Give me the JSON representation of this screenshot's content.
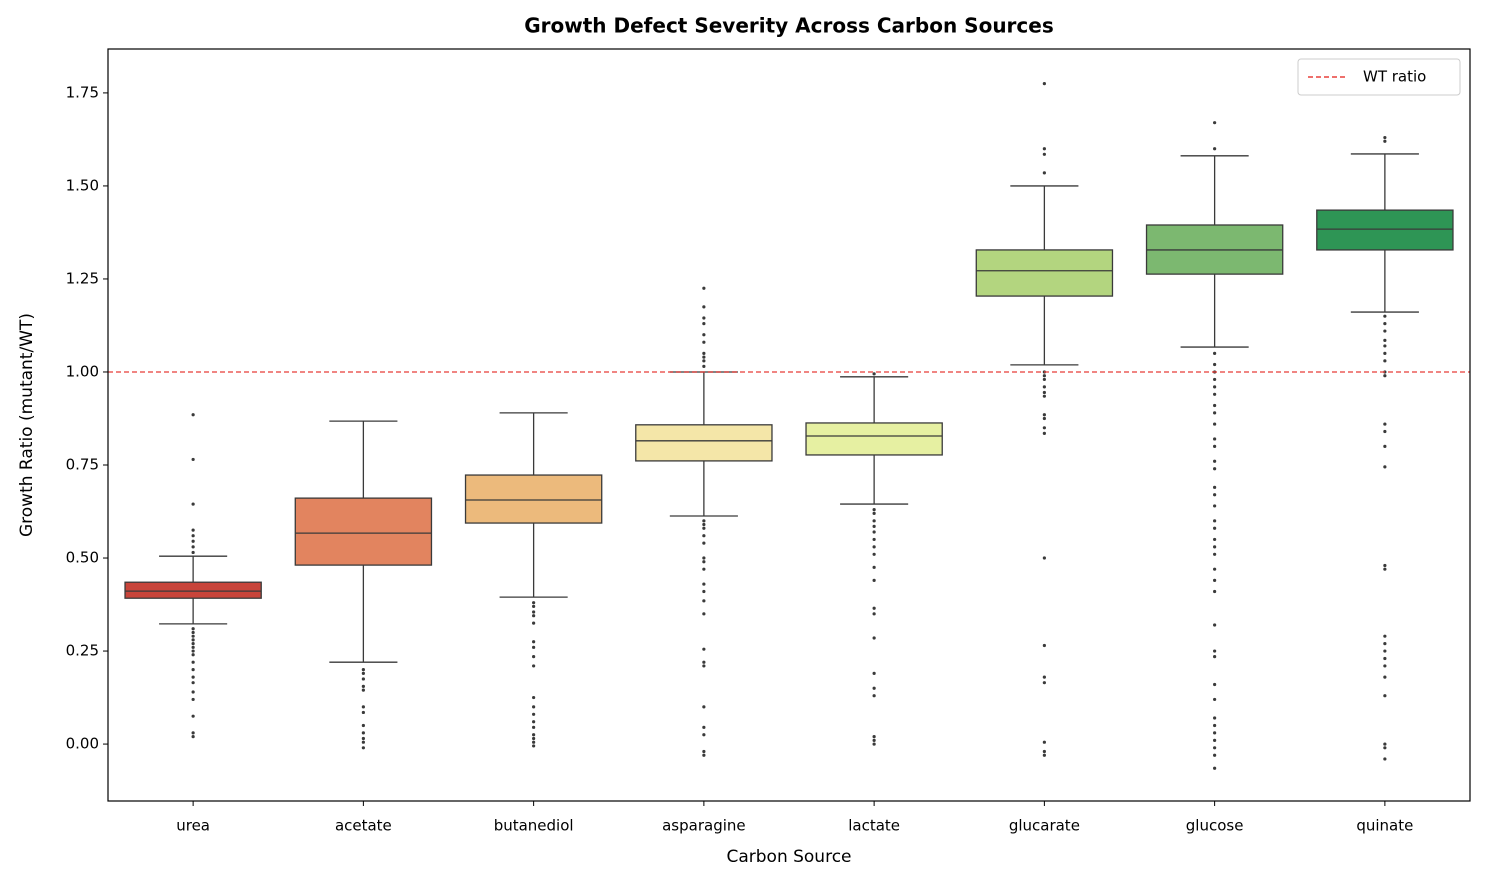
{
  "chart_data": {
    "type": "box",
    "title": "Growth Defect Severity Across Carbon Sources",
    "xlabel": "Carbon Source",
    "ylabel": "Growth Ratio (mutant/WT)",
    "categories": [
      "urea",
      "acetate",
      "butanediol",
      "asparagine",
      "lactate",
      "glucarate",
      "glucose",
      "quinate"
    ],
    "colors": [
      "#c8443a",
      "#e2845f",
      "#ecba7c",
      "#f4e6a8",
      "#e6f0a2",
      "#b3d57f",
      "#7cb870",
      "#2e9555"
    ],
    "boxes": [
      {
        "min": 0.323,
        "q1": 0.392,
        "median": 0.411,
        "q3": 0.435,
        "max": 0.505,
        "outliers": [
          0.885,
          0.765,
          0.645,
          0.575,
          0.56,
          0.545,
          0.53,
          0.515,
          0.31,
          0.3,
          0.29,
          0.28,
          0.27,
          0.26,
          0.25,
          0.24,
          0.22,
          0.2,
          0.18,
          0.165,
          0.14,
          0.12,
          0.075,
          0.03,
          0.02
        ]
      },
      {
        "min": 0.22,
        "q1": 0.481,
        "median": 0.567,
        "q3": 0.661,
        "max": 0.868,
        "outliers": [
          0.2,
          0.19,
          0.175,
          0.155,
          0.145,
          0.1,
          0.085,
          0.05,
          0.03,
          0.015,
          0.005,
          -0.01
        ]
      },
      {
        "min": 0.395,
        "q1": 0.594,
        "median": 0.656,
        "q3": 0.723,
        "max": 0.89,
        "outliers": [
          0.38,
          0.37,
          0.355,
          0.345,
          0.325,
          0.275,
          0.26,
          0.235,
          0.21,
          0.125,
          0.1,
          0.08,
          0.06,
          0.045,
          0.025,
          0.015,
          0.005,
          -0.005
        ]
      },
      {
        "min": 0.613,
        "q1": 0.761,
        "median": 0.815,
        "q3": 0.858,
        "max": 1.0,
        "outliers": [
          1.225,
          1.175,
          1.145,
          1.13,
          1.1,
          1.08,
          1.05,
          1.04,
          1.03,
          1.015,
          0.6,
          0.59,
          0.58,
          0.56,
          0.54,
          0.5,
          0.49,
          0.47,
          0.43,
          0.41,
          0.385,
          0.35,
          0.255,
          0.22,
          0.21,
          0.1,
          0.045,
          0.025,
          -0.02,
          -0.03
        ]
      },
      {
        "min": 0.645,
        "q1": 0.777,
        "median": 0.828,
        "q3": 0.863,
        "max": 0.987,
        "outliers": [
          0.995,
          0.63,
          0.62,
          0.6,
          0.585,
          0.57,
          0.55,
          0.53,
          0.51,
          0.475,
          0.44,
          0.365,
          0.35,
          0.285,
          0.19,
          0.15,
          0.13,
          0.02,
          0.01,
          0.0
        ]
      },
      {
        "min": 1.019,
        "q1": 1.204,
        "median": 1.272,
        "q3": 1.328,
        "max": 1.5,
        "outliers": [
          1.775,
          1.6,
          1.585,
          1.535,
          1.0,
          0.99,
          0.98,
          0.96,
          0.945,
          0.935,
          0.885,
          0.875,
          0.85,
          0.835,
          0.5,
          0.265,
          0.18,
          0.165,
          0.005,
          -0.02,
          -0.03
        ]
      },
      {
        "min": 1.067,
        "q1": 1.263,
        "median": 1.328,
        "q3": 1.395,
        "max": 1.581,
        "outliers": [
          1.67,
          1.6,
          1.05,
          1.02,
          1.0,
          0.98,
          0.96,
          0.94,
          0.91,
          0.89,
          0.86,
          0.82,
          0.8,
          0.76,
          0.74,
          0.69,
          0.67,
          0.64,
          0.6,
          0.58,
          0.55,
          0.53,
          0.51,
          0.47,
          0.44,
          0.41,
          0.32,
          0.25,
          0.235,
          0.16,
          0.12,
          0.07,
          0.05,
          0.03,
          0.01,
          -0.01,
          -0.03,
          -0.065
        ]
      },
      {
        "min": 1.161,
        "q1": 1.328,
        "median": 1.384,
        "q3": 1.435,
        "max": 1.586,
        "outliers": [
          1.63,
          1.62,
          1.15,
          1.13,
          1.11,
          1.085,
          1.07,
          1.05,
          1.03,
          1.0,
          0.99,
          0.86,
          0.84,
          0.8,
          0.745,
          0.48,
          0.47,
          0.29,
          0.27,
          0.25,
          0.23,
          0.21,
          0.18,
          0.13,
          0.0,
          -0.01,
          -0.04
        ]
      }
    ],
    "reference_line": {
      "value": 1,
      "label": "WT ratio",
      "color": "#e8413c"
    },
    "legend": "upper right",
    "ylim": [
      -0.153,
      1.868
    ],
    "yticks": [
      {
        "value": 0,
        "label": "0.00"
      },
      {
        "value": 0.25,
        "label": "0.25"
      },
      {
        "value": 0.5,
        "label": "0.50"
      },
      {
        "value": 0.75,
        "label": "0.75"
      },
      {
        "value": 1,
        "label": "1.00"
      },
      {
        "value": 1.25,
        "label": "1.25"
      },
      {
        "value": 1.5,
        "label": "1.50"
      },
      {
        "value": 1.75,
        "label": "1.75"
      }
    ],
    "grid": false
  }
}
